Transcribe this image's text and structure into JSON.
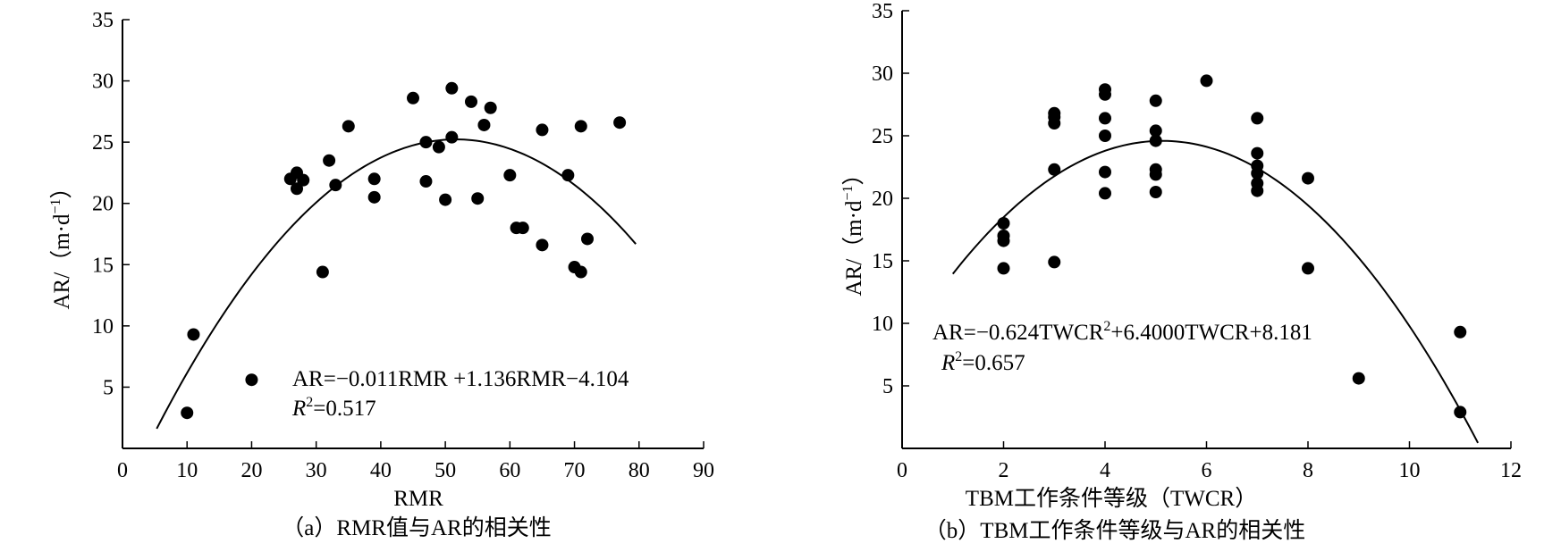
{
  "chart_data": [
    {
      "type": "scatter",
      "xlabel": "RMR",
      "ylabel": "AR/（m·d",
      "ylabel_sup": "−1",
      "ylabel_close": "）",
      "xlim": [
        0,
        90
      ],
      "ylim": [
        0,
        35
      ],
      "x_ticks": [
        0,
        10,
        20,
        30,
        40,
        50,
        60,
        70,
        80,
        90
      ],
      "y_ticks": [
        5,
        10,
        15,
        20,
        25,
        30,
        35
      ],
      "points": [
        [
          10,
          2.9
        ],
        [
          11,
          9.3
        ],
        [
          20,
          5.6
        ],
        [
          26,
          22.0
        ],
        [
          27,
          22.5
        ],
        [
          27,
          21.2
        ],
        [
          28,
          21.9
        ],
        [
          31,
          14.4
        ],
        [
          32,
          23.5
        ],
        [
          33,
          21.5
        ],
        [
          35,
          26.3
        ],
        [
          39,
          22.0
        ],
        [
          39,
          20.5
        ],
        [
          45,
          28.6
        ],
        [
          47,
          25.0
        ],
        [
          47,
          21.8
        ],
        [
          49,
          24.6
        ],
        [
          50,
          20.3
        ],
        [
          51,
          29.4
        ],
        [
          51,
          25.4
        ],
        [
          54,
          28.3
        ],
        [
          55,
          20.4
        ],
        [
          56,
          26.4
        ],
        [
          57,
          27.8
        ],
        [
          60,
          22.3
        ],
        [
          61,
          18.0
        ],
        [
          62,
          18.0
        ],
        [
          65,
          26.0
        ],
        [
          65,
          16.6
        ],
        [
          69,
          22.3
        ],
        [
          70,
          14.8
        ],
        [
          71,
          26.3
        ],
        [
          71,
          14.4
        ],
        [
          72,
          17.1
        ],
        [
          77,
          26.6
        ]
      ],
      "fit": {
        "a": -0.011,
        "b": 1.136,
        "c": -4.104,
        "x_range": [
          5.3,
          79.5
        ]
      },
      "equation": "AR=−0.011RMR  +1.136RMR−4.104",
      "r2_label": "R",
      "r2_value": "=0.517",
      "caption": "（a）RMR值与AR的相关性"
    },
    {
      "type": "scatter",
      "xlabel": "TBM工作条件等级（TWCR）",
      "ylabel": "AR/（m·d",
      "ylabel_sup": "−1",
      "ylabel_close": "）",
      "xlim": [
        0,
        12
      ],
      "ylim": [
        0,
        35
      ],
      "x_ticks": [
        0,
        2,
        4,
        6,
        8,
        10,
        12
      ],
      "y_ticks": [
        5,
        10,
        15,
        20,
        25,
        30,
        35
      ],
      "points": [
        [
          2,
          18.0
        ],
        [
          2,
          17.0
        ],
        [
          2,
          16.6
        ],
        [
          2,
          14.4
        ],
        [
          3,
          26.8
        ],
        [
          3,
          26.5
        ],
        [
          3,
          26.0
        ],
        [
          3,
          22.3
        ],
        [
          3,
          14.9
        ],
        [
          4,
          28.7
        ],
        [
          4,
          28.3
        ],
        [
          4,
          26.4
        ],
        [
          4,
          25.0
        ],
        [
          4,
          22.1
        ],
        [
          4,
          20.4
        ],
        [
          5,
          27.8
        ],
        [
          5,
          25.4
        ],
        [
          5,
          24.6
        ],
        [
          5,
          22.3
        ],
        [
          5,
          21.9
        ],
        [
          5,
          20.5
        ],
        [
          6,
          29.4
        ],
        [
          7,
          26.4
        ],
        [
          7,
          23.6
        ],
        [
          7,
          22.6
        ],
        [
          7,
          22.0
        ],
        [
          7,
          21.2
        ],
        [
          7,
          20.6
        ],
        [
          8,
          21.6
        ],
        [
          8,
          14.4
        ],
        [
          9,
          5.6
        ],
        [
          11,
          9.3
        ],
        [
          11,
          2.9
        ]
      ],
      "fit": {
        "a": -0.624,
        "b": 6.4,
        "c": 8.181,
        "x_range": [
          1.0,
          11.35
        ]
      },
      "equation": "AR=−0.624TWCR",
      "equation_sup": "2",
      "equation_rest": "+6.4000TWCR+8.181",
      "r2_label": "R",
      "r2_value": "=0.657",
      "caption": "（b）TBM工作条件等级与AR的相关性"
    }
  ]
}
